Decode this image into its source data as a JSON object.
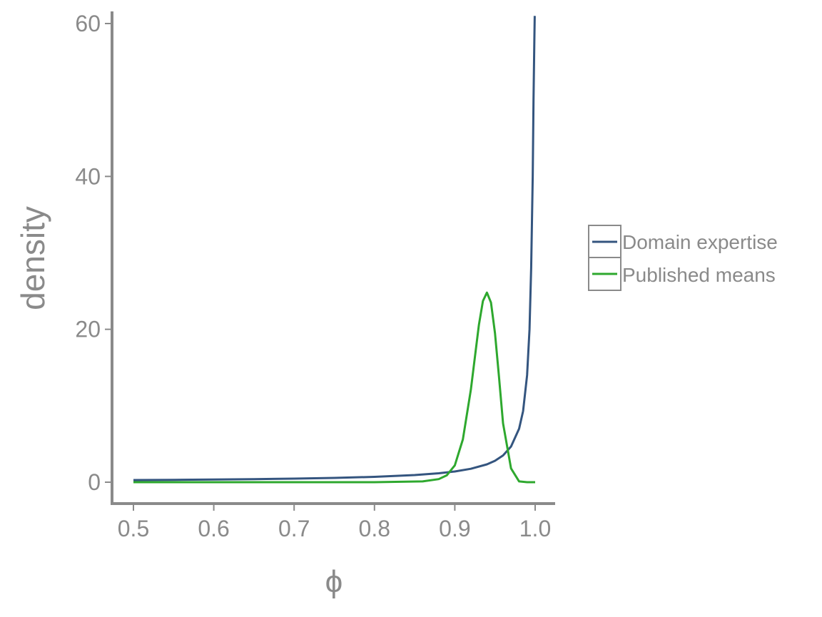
{
  "chart_data": {
    "type": "line",
    "title": "",
    "xlabel": "ϕ",
    "ylabel": "density",
    "xlim": [
      0.5,
      1.0
    ],
    "ylim": [
      0,
      60
    ],
    "xticks": [
      0.5,
      0.6,
      0.7,
      0.8,
      0.9,
      1.0
    ],
    "xtick_labels": [
      "0.5",
      "0.6",
      "0.7",
      "0.8",
      "0.9",
      "1.0"
    ],
    "yticks": [
      0,
      20,
      40,
      60
    ],
    "ytick_labels": [
      "0",
      "20",
      "40",
      "60"
    ],
    "grid": false,
    "legend_position": "right",
    "series": [
      {
        "name": "Domain expertise",
        "color": "#34557f",
        "x": [
          0.5,
          0.55,
          0.6,
          0.65,
          0.7,
          0.75,
          0.8,
          0.85,
          0.88,
          0.9,
          0.92,
          0.94,
          0.95,
          0.96,
          0.97,
          0.98,
          0.985,
          0.99,
          0.993,
          0.995,
          0.997,
          0.998,
          0.999,
          0.9995
        ],
        "y": [
          0.28,
          0.31,
          0.35,
          0.4,
          0.47,
          0.56,
          0.7,
          0.93,
          1.17,
          1.4,
          1.75,
          2.33,
          2.8,
          3.5,
          4.67,
          7.0,
          9.3,
          14.0,
          20.0,
          28.0,
          40.0,
          50.0,
          58.0,
          61.0
        ]
      },
      {
        "name": "Published means",
        "color": "#2ea82e",
        "x": [
          0.5,
          0.8,
          0.86,
          0.88,
          0.89,
          0.9,
          0.91,
          0.92,
          0.925,
          0.93,
          0.935,
          0.94,
          0.945,
          0.95,
          0.955,
          0.96,
          0.97,
          0.98,
          0.99,
          1.0
        ],
        "y": [
          0.0,
          0.0,
          0.1,
          0.4,
          0.9,
          2.2,
          5.6,
          12.1,
          16.4,
          20.6,
          23.7,
          24.8,
          23.5,
          19.5,
          13.8,
          7.7,
          1.8,
          0.1,
          0.0,
          0.0
        ]
      }
    ]
  }
}
